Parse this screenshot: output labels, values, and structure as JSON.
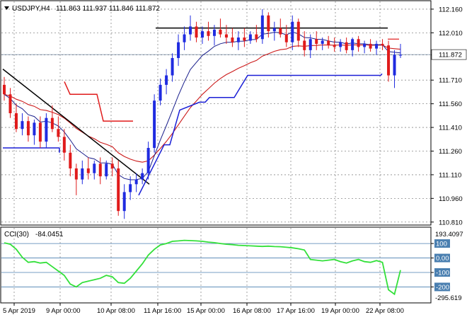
{
  "header": {
    "symbol_tf": "USDJPY,H4",
    "ohlc": "111.863 111.937 111.846 111.872"
  },
  "indicator": {
    "name": "CCI(30)",
    "value": "-84.0451"
  },
  "colors": {
    "bull": "#1f2be0",
    "bear": "#e01b1b",
    "ma_fast": "#1a1f8c",
    "ma_slow": "#cc1a1a",
    "trend": "#000000",
    "stop_blue": "#1a1fd6",
    "stop_red": "#e01b1b",
    "cci": "#33e03a",
    "level": "#4a7fb0",
    "grid": "#8a8a8a"
  },
  "chart_data": [
    {
      "type": "candlestick",
      "price_ticks": [
        "112.160",
        "112.010",
        "111.870",
        "111.710",
        "111.560",
        "111.410",
        "111.260",
        "111.110",
        "110.960",
        "110.810"
      ],
      "last_price": "111.872",
      "ylim": [
        110.8,
        112.2
      ],
      "x_ticks": [
        "5 Apr 2019",
        "9 Apr 00:00",
        "10 Apr 08:00",
        "11 Apr 16:00",
        "15 Apr 00:00",
        "16 Apr 08:00",
        "17 Apr 16:00",
        "19 Apr 00:00",
        "22 Apr 08:00"
      ],
      "candles": [
        [
          111.68,
          111.73,
          111.58,
          111.62
        ],
        [
          111.62,
          111.66,
          111.47,
          111.5
        ],
        [
          111.5,
          111.56,
          111.38,
          111.4
        ],
        [
          111.4,
          111.5,
          111.36,
          111.45
        ],
        [
          111.45,
          111.48,
          111.32,
          111.36
        ],
        [
          111.36,
          111.46,
          111.3,
          111.44
        ],
        [
          111.44,
          111.48,
          111.28,
          111.32
        ],
        [
          111.32,
          111.5,
          111.28,
          111.47
        ],
        [
          111.47,
          111.55,
          111.38,
          111.4
        ],
        [
          111.4,
          111.48,
          111.32,
          111.35
        ],
        [
          111.35,
          111.4,
          111.2,
          111.25
        ],
        [
          111.25,
          111.3,
          111.1,
          111.15
        ],
        [
          111.15,
          111.18,
          110.98,
          111.08
        ],
        [
          111.08,
          111.2,
          111.05,
          111.15
        ],
        [
          111.15,
          111.22,
          111.08,
          111.12
        ],
        [
          111.12,
          111.2,
          111.08,
          111.18
        ],
        [
          111.18,
          111.22,
          111.05,
          111.1
        ],
        [
          111.1,
          111.2,
          111.08,
          111.18
        ],
        [
          111.18,
          111.22,
          111.1,
          111.15
        ],
        [
          111.15,
          111.2,
          110.85,
          110.88
        ],
        [
          110.88,
          111.05,
          110.83,
          111.0
        ],
        [
          111.0,
          111.1,
          110.95,
          111.05
        ],
        [
          111.05,
          111.12,
          111.0,
          111.08
        ],
        [
          111.08,
          111.15,
          111.05,
          111.12
        ],
        [
          111.12,
          111.32,
          111.08,
          111.28
        ],
        [
          111.28,
          111.62,
          111.25,
          111.58
        ],
        [
          111.58,
          111.72,
          111.55,
          111.68
        ],
        [
          111.68,
          111.78,
          111.62,
          111.74
        ],
        [
          111.74,
          111.88,
          111.7,
          111.85
        ],
        [
          111.85,
          112.0,
          111.8,
          111.95
        ],
        [
          111.95,
          112.05,
          111.9,
          112.0
        ],
        [
          112.0,
          112.12,
          111.96,
          112.05
        ],
        [
          112.05,
          112.08,
          111.95,
          111.98
        ],
        [
          111.98,
          112.05,
          111.94,
          112.02
        ],
        [
          112.02,
          112.08,
          111.96,
          111.99
        ],
        [
          111.99,
          112.06,
          111.93,
          112.03
        ],
        [
          112.03,
          112.1,
          111.98,
          112.0
        ],
        [
          112.0,
          112.06,
          111.94,
          111.98
        ],
        [
          111.98,
          112.04,
          111.92,
          111.95
        ],
        [
          111.95,
          112.02,
          111.9,
          111.98
        ],
        [
          111.98,
          112.04,
          111.92,
          111.96
        ],
        [
          111.96,
          112.02,
          111.94,
          112.0
        ],
        [
          112.0,
          112.06,
          111.95,
          111.97
        ],
        [
          111.97,
          112.16,
          111.94,
          112.12
        ],
        [
          112.12,
          112.14,
          111.98,
          112.02
        ],
        [
          112.02,
          112.08,
          111.96,
          112.04
        ],
        [
          112.04,
          112.1,
          111.98,
          112.0
        ],
        [
          112.0,
          112.06,
          111.92,
          111.95
        ],
        [
          111.95,
          112.12,
          111.9,
          112.08
        ],
        [
          112.08,
          112.1,
          111.92,
          111.96
        ],
        [
          111.96,
          112.02,
          111.86,
          111.9
        ],
        [
          111.9,
          112.0,
          111.85,
          111.97
        ],
        [
          111.97,
          112.02,
          111.9,
          111.94
        ],
        [
          111.94,
          111.98,
          111.9,
          111.96
        ],
        [
          111.96,
          111.99,
          111.91,
          111.93
        ],
        [
          111.93,
          111.98,
          111.89,
          111.92
        ],
        [
          111.92,
          111.97,
          111.89,
          111.95
        ],
        [
          111.95,
          111.98,
          111.88,
          111.9
        ],
        [
          111.9,
          111.98,
          111.86,
          111.97
        ],
        [
          111.97,
          111.99,
          111.89,
          111.92
        ],
        [
          111.92,
          111.96,
          111.88,
          111.94
        ],
        [
          111.94,
          111.97,
          111.89,
          111.91
        ],
        [
          111.91,
          111.96,
          111.87,
          111.94
        ],
        [
          111.94,
          111.97,
          111.9,
          111.93
        ],
        [
          111.93,
          111.96,
          111.7,
          111.74
        ],
        [
          111.74,
          111.9,
          111.66,
          111.87
        ],
        [
          111.87,
          111.94,
          111.85,
          111.87
        ]
      ]
    },
    {
      "type": "line",
      "title": "CCI(30)",
      "levels": [
        "100",
        "0.00",
        "-100",
        "-200"
      ],
      "ylim": [
        -295.619,
        193.4097
      ],
      "ymax_label": "193.4097",
      "ymin_label": "-295.619",
      "values": [
        105,
        95,
        60,
        5,
        -30,
        -25,
        -35,
        -30,
        -60,
        -90,
        -120,
        -180,
        -200,
        -170,
        -160,
        -150,
        -140,
        -120,
        -130,
        -170,
        -175,
        -140,
        -90,
        -40,
        20,
        60,
        90,
        100,
        115,
        118,
        122,
        120,
        118,
        115,
        110,
        106,
        100,
        95,
        92,
        88,
        86,
        84,
        82,
        80,
        82,
        79,
        78,
        74,
        70,
        64,
        55,
        -10,
        -15,
        -20,
        -15,
        -10,
        -25,
        -35,
        -20,
        -10,
        -25,
        -30,
        -18,
        -30,
        -220,
        -250,
        -84
      ]
    }
  ]
}
